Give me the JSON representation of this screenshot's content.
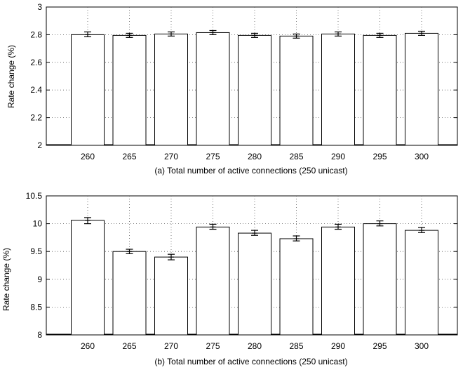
{
  "chart_data": [
    {
      "type": "bar",
      "caption": "(a) Total number of active connections (250 unicast)",
      "ylabel": "Rate change (%)",
      "categories": [
        "260",
        "265",
        "270",
        "275",
        "280",
        "285",
        "290",
        "295",
        "300"
      ],
      "values": [
        2.8,
        2.795,
        2.805,
        2.815,
        2.795,
        2.79,
        2.805,
        2.795,
        2.81
      ],
      "error_low": [
        2.785,
        2.78,
        2.79,
        2.8,
        2.78,
        2.775,
        2.79,
        2.78,
        2.795
      ],
      "error_high": [
        2.82,
        2.81,
        2.82,
        2.83,
        2.81,
        2.805,
        2.82,
        2.81,
        2.825
      ],
      "ylim": [
        2,
        3
      ],
      "yticks": [
        "2",
        "2.2",
        "2.4",
        "2.6",
        "2.8",
        "3"
      ],
      "grid": true
    },
    {
      "type": "bar",
      "caption": "(b) Total number of active connections (250 unicast)",
      "ylabel": "Rate change (%)",
      "categories": [
        "260",
        "265",
        "270",
        "275",
        "280",
        "285",
        "290",
        "295",
        "300"
      ],
      "values": [
        10.06,
        9.5,
        9.4,
        9.94,
        9.83,
        9.73,
        9.94,
        10.0,
        9.88
      ],
      "error_low": [
        10.0,
        9.46,
        9.35,
        9.9,
        9.79,
        9.69,
        9.9,
        9.96,
        9.84
      ],
      "error_high": [
        10.11,
        9.54,
        9.45,
        9.99,
        9.88,
        9.78,
        9.99,
        10.05,
        9.93
      ],
      "ylim": [
        8,
        10.5
      ],
      "yticks": [
        "8",
        "8.5",
        "9",
        "9.5",
        "10",
        "10.5"
      ],
      "grid": true
    }
  ]
}
